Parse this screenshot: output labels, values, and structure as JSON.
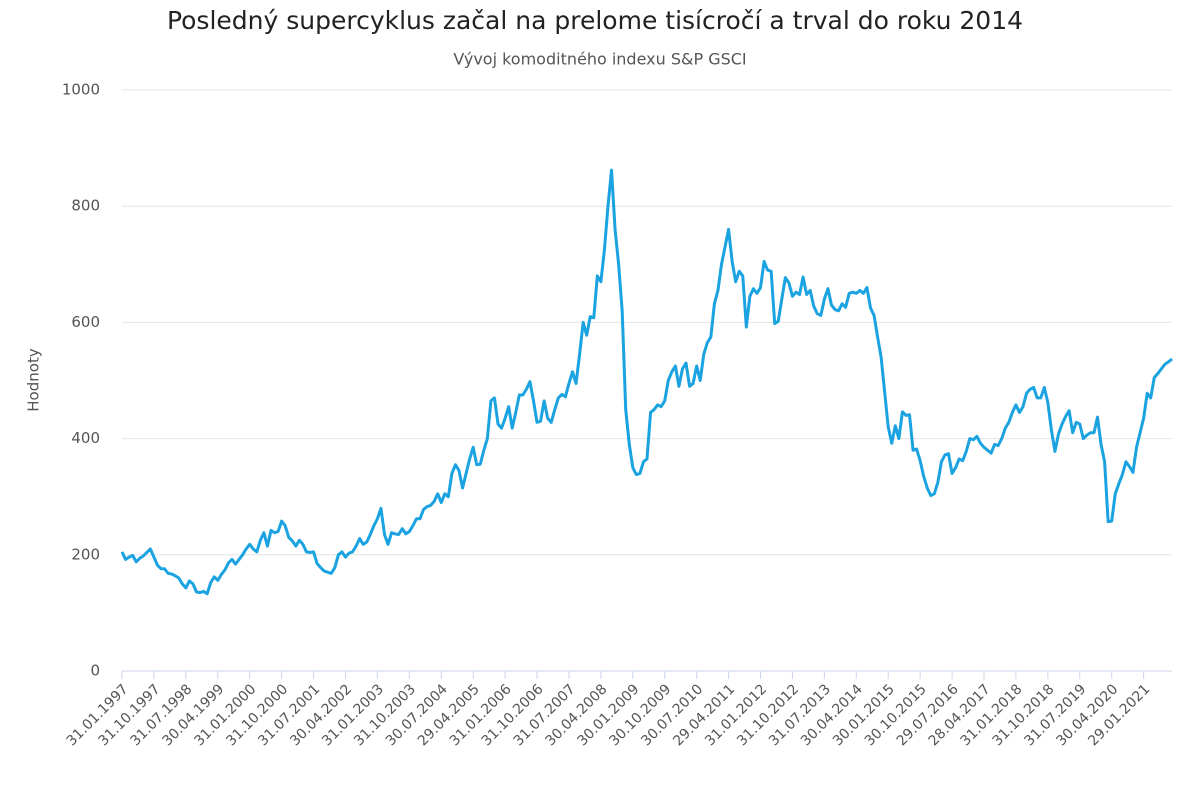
{
  "chart_data": {
    "type": "line",
    "title": "Posledný supercyklus začal na prelome tisícročí a trval do roku 2014",
    "subtitle": "Vývoj komoditného indexu S&P GSCI",
    "y_label": "Hodnoty",
    "color": "#1aa3e0",
    "grid": true,
    "ylim": [
      0,
      1000
    ],
    "yticks": [
      0,
      200,
      400,
      600,
      800,
      1000
    ],
    "categories": [
      "31.01.1997",
      null,
      null,
      null,
      null,
      null,
      null,
      null,
      null,
      "31.10.1997",
      null,
      null,
      null,
      null,
      null,
      null,
      null,
      null,
      "31.07.1998",
      null,
      null,
      null,
      null,
      null,
      null,
      null,
      null,
      "30.04.1999",
      null,
      null,
      null,
      null,
      null,
      null,
      null,
      null,
      "31.01.2000",
      null,
      null,
      null,
      null,
      null,
      null,
      null,
      null,
      "31.10.2000",
      null,
      null,
      null,
      null,
      null,
      null,
      null,
      null,
      "31.07.2001",
      null,
      null,
      null,
      null,
      null,
      null,
      null,
      null,
      "30.04.2002",
      null,
      null,
      null,
      null,
      null,
      null,
      null,
      null,
      "31.01.2003",
      null,
      null,
      null,
      null,
      null,
      null,
      null,
      null,
      "31.10.2003",
      null,
      null,
      null,
      null,
      null,
      null,
      null,
      null,
      "30.07.2004",
      null,
      null,
      null,
      null,
      null,
      null,
      null,
      null,
      "29.04.2005",
      null,
      null,
      null,
      null,
      null,
      null,
      null,
      null,
      "31.01.2006",
      null,
      null,
      null,
      null,
      null,
      null,
      null,
      null,
      "31.10.2006",
      null,
      null,
      null,
      null,
      null,
      null,
      null,
      null,
      "31.07.2007",
      null,
      null,
      null,
      null,
      null,
      null,
      null,
      null,
      "30.04.2008",
      null,
      null,
      null,
      null,
      null,
      null,
      null,
      null,
      "30.01.2009",
      null,
      null,
      null,
      null,
      null,
      null,
      null,
      null,
      "30.10.2009",
      null,
      null,
      null,
      null,
      null,
      null,
      null,
      null,
      "30.07.2010",
      null,
      null,
      null,
      null,
      null,
      null,
      null,
      null,
      "29.04.2011",
      null,
      null,
      null,
      null,
      null,
      null,
      null,
      null,
      "31.01.2012",
      null,
      null,
      null,
      null,
      null,
      null,
      null,
      null,
      "31.10.2012",
      null,
      null,
      null,
      null,
      null,
      null,
      null,
      null,
      "31.07.2013",
      null,
      null,
      null,
      null,
      null,
      null,
      null,
      null,
      "30.04.2014",
      null,
      null,
      null,
      null,
      null,
      null,
      null,
      null,
      "30.01.2015",
      null,
      null,
      null,
      null,
      null,
      null,
      null,
      null,
      "30.10.2015",
      null,
      null,
      null,
      null,
      null,
      null,
      null,
      null,
      "29.07.2016",
      null,
      null,
      null,
      null,
      null,
      null,
      null,
      null,
      "28.04.2017",
      null,
      null,
      null,
      null,
      null,
      null,
      null,
      null,
      "31.01.2018",
      null,
      null,
      null,
      null,
      null,
      null,
      null,
      null,
      "31.10.2018",
      null,
      null,
      null,
      null,
      null,
      null,
      null,
      null,
      "31.07.2019",
      null,
      null,
      null,
      null,
      null,
      null,
      null,
      null,
      "30.04.2020",
      null,
      null,
      null,
      null,
      null,
      null,
      null,
      null,
      "29.01.2021",
      null,
      null,
      null,
      null,
      null,
      null,
      null,
      null
    ],
    "values": [
      205,
      192,
      196,
      199,
      188,
      194,
      198,
      204,
      210,
      196,
      182,
      176,
      176,
      168,
      167,
      164,
      160,
      150,
      143,
      155,
      150,
      136,
      135,
      137,
      133,
      152,
      162,
      156,
      166,
      174,
      186,
      192,
      184,
      192,
      200,
      210,
      218,
      210,
      205,
      225,
      238,
      215,
      242,
      238,
      240,
      258,
      250,
      230,
      224,
      215,
      225,
      218,
      205,
      204,
      205,
      185,
      178,
      172,
      170,
      168,
      178,
      200,
      205,
      196,
      203,
      205,
      215,
      228,
      218,
      222,
      235,
      250,
      262,
      280,
      235,
      218,
      238,
      236,
      235,
      245,
      236,
      240,
      250,
      262,
      262,
      278,
      283,
      285,
      292,
      305,
      290,
      305,
      300,
      340,
      355,
      345,
      315,
      340,
      365,
      385,
      355,
      356,
      380,
      400,
      465,
      470,
      425,
      418,
      435,
      455,
      418,
      445,
      475,
      475,
      485,
      498,
      465,
      428,
      430,
      465,
      435,
      428,
      450,
      470,
      476,
      472,
      495,
      515,
      495,
      545,
      600,
      578,
      610,
      608,
      680,
      670,
      725,
      800,
      862,
      760,
      700,
      620,
      450,
      390,
      350,
      338,
      340,
      360,
      365,
      445,
      450,
      458,
      455,
      465,
      500,
      515,
      525,
      490,
      520,
      530,
      490,
      495,
      525,
      500,
      545,
      565,
      575,
      632,
      655,
      700,
      730,
      760,
      705,
      670,
      688,
      680,
      592,
      645,
      658,
      650,
      660,
      705,
      690,
      688,
      598,
      602,
      640,
      677,
      668,
      645,
      652,
      648,
      678,
      648,
      655,
      628,
      615,
      612,
      640,
      658,
      630,
      622,
      620,
      632,
      626,
      650,
      652,
      650,
      655,
      650,
      660,
      625,
      612,
      575,
      540,
      480,
      420,
      392,
      422,
      400,
      446,
      440,
      441,
      380,
      382,
      362,
      335,
      315,
      302,
      305,
      325,
      360,
      372,
      374,
      340,
      350,
      365,
      362,
      378,
      400,
      398,
      404,
      392,
      385,
      380,
      375,
      390,
      388,
      400,
      418,
      428,
      445,
      458,
      445,
      455,
      478,
      485,
      488,
      470,
      470,
      488,
      462,
      415,
      378,
      408,
      425,
      438,
      448,
      410,
      428,
      425,
      400,
      406,
      410,
      410,
      437,
      390,
      360,
      257,
      258,
      305,
      322,
      338,
      360,
      352,
      342,
      385,
      410,
      435,
      478,
      470,
      505,
      512,
      520,
      528,
      532,
      537
    ]
  }
}
